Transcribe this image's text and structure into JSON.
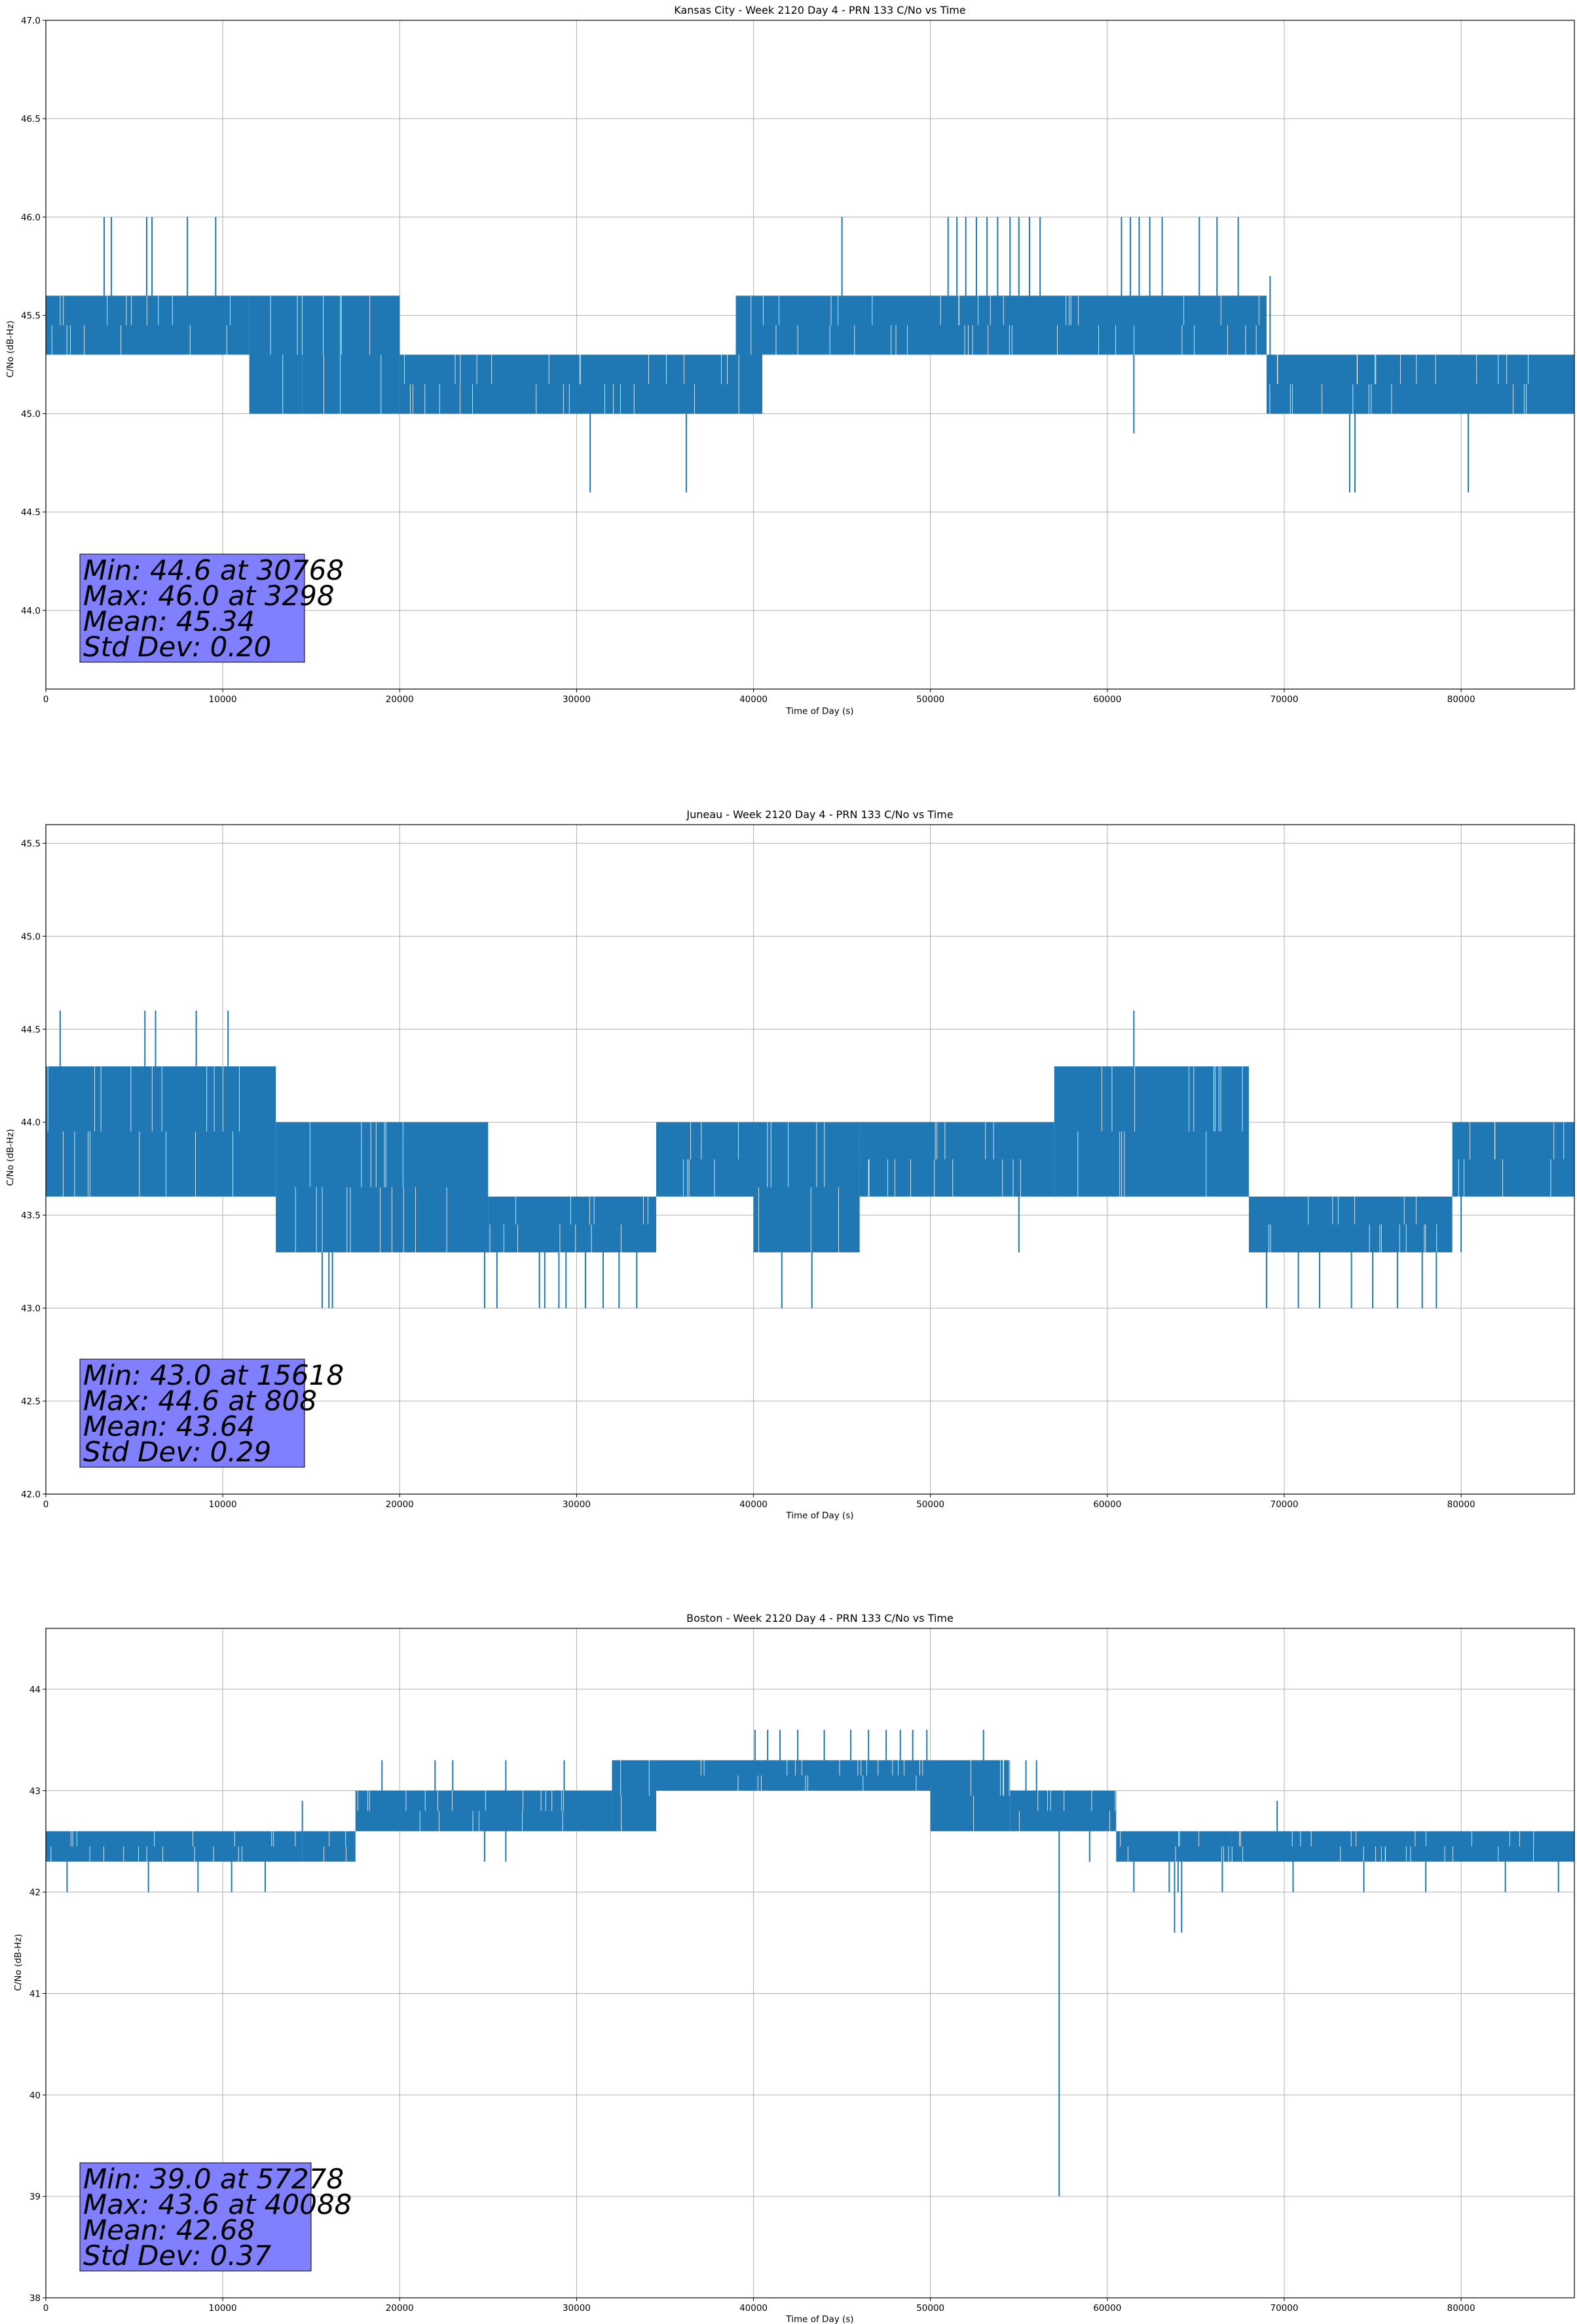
{
  "chart_data": [
    {
      "type": "line",
      "title": "Kansas City - Week 2120 Day 4 - PRN 133 C/No vs Time",
      "xlabel": "Time of Day (s)",
      "ylabel": "C/No (dB-Hz)",
      "xlim": [
        0,
        86400
      ],
      "ylim": [
        43.6,
        47.0
      ],
      "xticks": [
        0,
        10000,
        20000,
        30000,
        40000,
        50000,
        60000,
        70000,
        80000
      ],
      "yticks": [
        "44.0",
        "44.5",
        "45.0",
        "45.5",
        "46.0",
        "46.5",
        "47.0"
      ],
      "grid": true,
      "color": "#1f77b4",
      "band_segments": [
        {
          "x": [
            0,
            11500
          ],
          "low": 45.3,
          "high": 45.6
        },
        {
          "x": [
            11500,
            14500
          ],
          "low": 45.0,
          "high": 45.6
        },
        {
          "x": [
            14500,
            20000
          ],
          "low": 45.0,
          "high": 45.6
        },
        {
          "x": [
            20000,
            39000
          ],
          "low": 45.0,
          "high": 45.3
        },
        {
          "x": [
            39000,
            40500
          ],
          "low": 45.0,
          "high": 45.6
        },
        {
          "x": [
            40500,
            69000
          ],
          "low": 45.3,
          "high": 45.6
        },
        {
          "x": [
            69000,
            86400
          ],
          "low": 45.0,
          "high": 45.3
        }
      ],
      "upper_spikes": [
        3298,
        3700,
        5700,
        6000,
        8000,
        9600,
        45000,
        51000,
        51500,
        52000,
        52600,
        53200,
        53800,
        54500,
        55000,
        55600,
        56200,
        60800,
        61300,
        61800,
        62400,
        63100,
        65200,
        66200,
        67400,
        69200
      ],
      "lower_spikes": [
        30768,
        36200,
        61500,
        73700,
        74000,
        80400
      ],
      "stats": {
        "min": "Min: 44.6 at 30768",
        "max": "Max: 46.0 at 3298",
        "mean": "Mean: 45.34",
        "std": "Std Dev: 0.20"
      }
    },
    {
      "type": "line",
      "title": "Juneau - Week 2120 Day 4 - PRN 133 C/No vs Time",
      "xlabel": "Time of Day (s)",
      "ylabel": "C/No (dB-Hz)",
      "xlim": [
        0,
        86400
      ],
      "ylim": [
        42.0,
        45.6
      ],
      "xticks": [
        0,
        10000,
        20000,
        30000,
        40000,
        50000,
        60000,
        70000,
        80000
      ],
      "yticks": [
        "42.0",
        "42.5",
        "43.0",
        "43.5",
        "44.0",
        "44.5",
        "45.0",
        "45.5"
      ],
      "grid": true,
      "color": "#1f77b4",
      "band_segments": [
        {
          "x": [
            0,
            13000
          ],
          "low": 43.6,
          "high": 44.3
        },
        {
          "x": [
            13000,
            25000
          ],
          "low": 43.3,
          "high": 44.0
        },
        {
          "x": [
            25000,
            34500
          ],
          "low": 43.3,
          "high": 43.6
        },
        {
          "x": [
            34500,
            40000
          ],
          "low": 43.6,
          "high": 44.0
        },
        {
          "x": [
            40000,
            46000
          ],
          "low": 43.3,
          "high": 44.0
        },
        {
          "x": [
            46000,
            57000
          ],
          "low": 43.6,
          "high": 44.0
        },
        {
          "x": [
            57000,
            68000
          ],
          "low": 43.6,
          "high": 44.3
        },
        {
          "x": [
            68000,
            79500
          ],
          "low": 43.3,
          "high": 43.6
        },
        {
          "x": [
            79500,
            86400
          ],
          "low": 43.6,
          "high": 44.0
        }
      ],
      "upper_spikes": [
        808,
        5600,
        6200,
        8500,
        10300,
        61500
      ],
      "lower_spikes": [
        15618,
        16000,
        16200,
        24800,
        25500,
        27900,
        28200,
        29000,
        29400,
        30500,
        31500,
        32400,
        33400,
        41600,
        43300,
        55000,
        69000,
        70800,
        72000,
        73800,
        75000,
        76400,
        77800,
        78600,
        80000
      ],
      "stats": {
        "min": "Min: 43.0 at 15618",
        "max": "Max: 44.6 at 808",
        "mean": "Mean: 43.64",
        "std": "Std Dev: 0.29"
      }
    },
    {
      "type": "line",
      "title": "Boston - Week 2120 Day 4 - PRN 133 C/No vs Time",
      "xlabel": "Time of Day (s)",
      "ylabel": "C/No (dB-Hz)",
      "xlim": [
        0,
        86400
      ],
      "ylim": [
        38.0,
        44.6
      ],
      "xticks": [
        0,
        10000,
        20000,
        30000,
        40000,
        50000,
        60000,
        70000,
        80000
      ],
      "yticks": [
        "38",
        "39",
        "40",
        "41",
        "42",
        "43",
        "44"
      ],
      "grid": true,
      "color": "#1f77b4",
      "band_segments": [
        {
          "x": [
            0,
            14500
          ],
          "low": 42.3,
          "high": 42.6
        },
        {
          "x": [
            14500,
            17500
          ],
          "low": 42.3,
          "high": 42.6
        },
        {
          "x": [
            17500,
            32000
          ],
          "low": 42.6,
          "high": 43.0
        },
        {
          "x": [
            32000,
            34500
          ],
          "low": 42.6,
          "high": 43.3
        },
        {
          "x": [
            34500,
            50000
          ],
          "low": 43.0,
          "high": 43.3
        },
        {
          "x": [
            50000,
            54500
          ],
          "low": 42.6,
          "high": 43.3
        },
        {
          "x": [
            54500,
            60500
          ],
          "low": 42.6,
          "high": 43.0
        },
        {
          "x": [
            60500,
            67000
          ],
          "low": 42.3,
          "high": 42.6
        },
        {
          "x": [
            67000,
            86400
          ],
          "low": 42.3,
          "high": 42.6
        }
      ],
      "upper_spikes": [
        14500,
        19000,
        22000,
        23000,
        26000,
        29300,
        40088,
        40800,
        41500,
        42500,
        44000,
        45500,
        46500,
        47500,
        48300,
        49000,
        49800,
        53000,
        55400,
        56000,
        69600
      ],
      "lower_spikes": [
        1200,
        5800,
        8600,
        10500,
        12400,
        24800,
        26000,
        59000,
        61500,
        63500,
        64000,
        66500,
        70500,
        74500,
        78000,
        82500,
        85500
      ],
      "deep_spikes": [
        {
          "x": 57278,
          "y": 39.0
        },
        {
          "x": 63800,
          "y": 41.6
        },
        {
          "x": 64200,
          "y": 41.6
        }
      ],
      "stats": {
        "min": "Min: 39.0 at 57278",
        "max": "Max: 43.6 at 40088",
        "mean": "Mean: 42.68",
        "std": "Std Dev: 0.37"
      }
    }
  ]
}
